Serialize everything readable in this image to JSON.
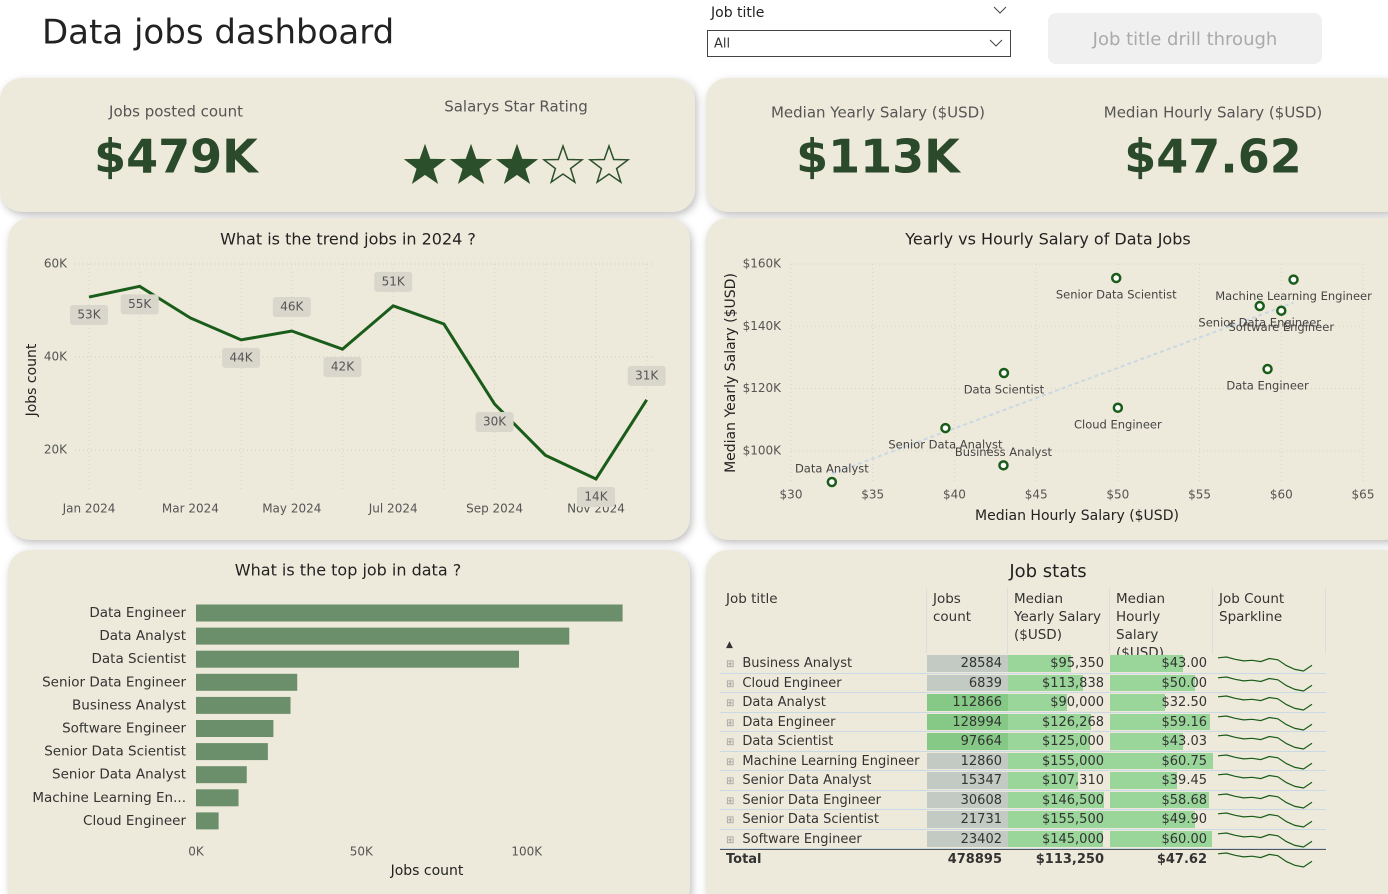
{
  "header": {
    "title": "Data jobs dashboard",
    "filter_label": "Job title",
    "filter_value": "All",
    "button": "Job title drill through"
  },
  "kpis": [
    {
      "label": "Jobs posted count",
      "value": "$479K"
    },
    {
      "label": "Salarys Star Rating",
      "rating": 3,
      "rating_max": 5
    },
    {
      "label": "Median Yearly Salary ($USD)",
      "value": "$113K"
    },
    {
      "label": "Median Hourly Salary ($USD)",
      "value": "$47.62"
    }
  ],
  "chart_data": [
    {
      "type": "line",
      "title": "What is the trend jobs in 2024 ?",
      "y_label": "Jobs count",
      "categories": [
        "Jan 2024",
        null,
        "Mar 2024",
        null,
        "May 2024",
        null,
        "Jul 2024",
        null,
        "Sep 2024",
        null,
        "Nov 2024",
        null
      ],
      "values": [
        52900,
        55200,
        48400,
        43700,
        45600,
        41700,
        51000,
        47100,
        29900,
        18900,
        13800,
        30800
      ],
      "value_labels": [
        "53K",
        "55K",
        null,
        "44K",
        "46K",
        "42K",
        "51K",
        null,
        "30K",
        null,
        "14K",
        "31K"
      ],
      "color": "#1a5c1a",
      "ylim": [
        11000,
        60000
      ],
      "yticks": [
        {
          "value": 20000,
          "label": "20K"
        },
        {
          "value": 40000,
          "label": "40K"
        },
        {
          "value": 60000,
          "label": "60K"
        }
      ],
      "grid": true
    },
    {
      "type": "scatter",
      "title": "Yearly vs Hourly Salary of Data Jobs",
      "x_label": "Median Hourly Salary ($USD)",
      "y_label": "Median Yearly Salary ($USD)",
      "point_labels": [
        "Business Analyst",
        "Cloud Engineer",
        "Data Analyst",
        "Data Engineer",
        "Data Scientist",
        "Machine Learning Engineer",
        "Senior Data Analyst",
        "Senior Data Engineer",
        "Senior Data Scientist",
        "Software Engineer"
      ],
      "x": [
        43.0,
        50.0,
        32.5,
        59.16,
        43.03,
        60.75,
        39.45,
        58.68,
        49.9,
        60.0
      ],
      "values": [
        95350,
        113838,
        90000,
        126268,
        125000,
        155000,
        107310,
        146500,
        155500,
        145000
      ],
      "color": "#1a5c1a",
      "trendline_color": "#c9d8e4",
      "xlim": [
        30,
        65
      ],
      "xticks": [
        {
          "value": 30,
          "label": "$30"
        },
        {
          "value": 35,
          "label": "$35"
        },
        {
          "value": 40,
          "label": "$40"
        },
        {
          "value": 45,
          "label": "$45"
        },
        {
          "value": 50,
          "label": "$50"
        },
        {
          "value": 55,
          "label": "$55"
        },
        {
          "value": 60,
          "label": "$60"
        },
        {
          "value": 65,
          "label": "$65"
        }
      ],
      "ylim": [
        90000,
        160000
      ],
      "yticks": [
        {
          "value": 100000,
          "label": "$100K"
        },
        {
          "value": 120000,
          "label": "$120K"
        },
        {
          "value": 140000,
          "label": "$140K"
        },
        {
          "value": 160000,
          "label": "$160K"
        }
      ],
      "grid": true,
      "trendline": true
    },
    {
      "type": "bar",
      "orientation": "horizontal",
      "title": "What is the top job in data ?",
      "x_label": "Jobs count",
      "categories": [
        "Data Engineer",
        "Data Analyst",
        "Data Scientist",
        "Senior Data Engineer",
        "Business Analyst",
        "Software Engineer",
        "Senior Data Scientist",
        "Senior Data Analyst",
        "Machine Learning En...",
        "Cloud Engineer"
      ],
      "values": [
        128994,
        112866,
        97664,
        30608,
        28584,
        23402,
        21731,
        15347,
        12860,
        6839
      ],
      "color": "#6b8f6b",
      "xlim": [
        0,
        140000
      ],
      "xticks": [
        {
          "value": 0,
          "label": "0K"
        },
        {
          "value": 50000,
          "label": "50K"
        },
        {
          "value": 100000,
          "label": "100K"
        }
      ]
    }
  ],
  "table": {
    "title": "Job stats",
    "columns": [
      "Job title",
      "Jobs count",
      "Median Yearly Salary ($USD)",
      "Median Hourly Salary ($USD)",
      "Job Count Sparkline"
    ],
    "colors": {
      "high": "#86c886",
      "low": "#c3cac3",
      "bar": "#9ad69a",
      "sparkline": "#1a5c1a"
    },
    "rows": [
      {
        "job_title": "Business Analyst",
        "jobs_count": 28584,
        "median_yearly": {
          "value": 95350,
          "label": "$95,350"
        },
        "median_hourly": {
          "value": 43.0,
          "label": "$43.00"
        },
        "sparkline": [
          3144,
          3287,
          2887,
          2601,
          2715,
          2487,
          3030,
          2801,
          1772,
          1115,
          829,
          1829
        ]
      },
      {
        "job_title": "Cloud Engineer",
        "jobs_count": 6839,
        "median_yearly": {
          "value": 113838,
          "label": "$113,838"
        },
        "median_hourly": {
          "value": 50.0,
          "label": "$50.00"
        },
        "sparkline": [
          752,
          786,
          691,
          622,
          650,
          595,
          725,
          670,
          424,
          267,
          198,
          438
        ]
      },
      {
        "job_title": "Data Analyst",
        "jobs_count": 112866,
        "median_yearly": {
          "value": 90000,
          "label": "$90,000"
        },
        "median_hourly": {
          "value": 32.5,
          "label": "$32.50"
        },
        "sparkline": [
          12415,
          12980,
          11399,
          10271,
          10722,
          9819,
          11964,
          11061,
          6998,
          4402,
          3273,
          7223
        ]
      },
      {
        "job_title": "Data Engineer",
        "jobs_count": 128994,
        "median_yearly": {
          "value": 126268,
          "label": "$126,268"
        },
        "median_hourly": {
          "value": 59.16,
          "label": "$59.16"
        },
        "sparkline": [
          14189,
          14834,
          13028,
          11738,
          12254,
          11222,
          13673,
          12641,
          7998,
          5031,
          3741,
          8256
        ]
      },
      {
        "job_title": "Data Scientist",
        "jobs_count": 97664,
        "median_yearly": {
          "value": 125000,
          "label": "$125,000"
        },
        "median_hourly": {
          "value": 43.03,
          "label": "$43.03"
        },
        "sparkline": [
          10743,
          11231,
          9864,
          8887,
          9278,
          8497,
          10352,
          9571,
          6055,
          3809,
          2832,
          6250
        ]
      },
      {
        "job_title": "Machine Learning Engineer",
        "jobs_count": 12860,
        "median_yearly": {
          "value": 155000,
          "label": "$155,000"
        },
        "median_hourly": {
          "value": 60.75,
          "label": "$60.75"
        },
        "sparkline": [
          1415,
          1479,
          1299,
          1170,
          1222,
          1119,
          1363,
          1260,
          797,
          502,
          373,
          823
        ]
      },
      {
        "job_title": "Senior Data Analyst",
        "jobs_count": 15347,
        "median_yearly": {
          "value": 107310,
          "label": "$107,310"
        },
        "median_hourly": {
          "value": 39.45,
          "label": "$39.45"
        },
        "sparkline": [
          1688,
          1765,
          1550,
          1397,
          1458,
          1335,
          1627,
          1504,
          952,
          599,
          445,
          982
        ]
      },
      {
        "job_title": "Senior Data Engineer",
        "jobs_count": 30608,
        "median_yearly": {
          "value": 146500,
          "label": "$146,500"
        },
        "median_hourly": {
          "value": 58.68,
          "label": "$58.68"
        },
        "sparkline": [
          3367,
          3520,
          3091,
          2785,
          2908,
          2663,
          3244,
          3000,
          1898,
          1194,
          888,
          1959
        ]
      },
      {
        "job_title": "Senior Data Scientist",
        "jobs_count": 21731,
        "median_yearly": {
          "value": 155500,
          "label": "$155,500"
        },
        "median_hourly": {
          "value": 49.9,
          "label": "$49.90"
        },
        "sparkline": [
          2390,
          2499,
          2195,
          1978,
          2064,
          1891,
          2303,
          2130,
          1347,
          848,
          630,
          1391
        ]
      },
      {
        "job_title": "Software Engineer",
        "jobs_count": 23402,
        "median_yearly": {
          "value": 145000,
          "label": "$145,000"
        },
        "median_hourly": {
          "value": 60.0,
          "label": "$60.00"
        },
        "sparkline": [
          2574,
          2691,
          2364,
          2130,
          2223,
          2036,
          2481,
          2293,
          1451,
          913,
          679,
          1498
        ]
      }
    ],
    "total": {
      "label": "Total",
      "jobs_count": 478895,
      "median_yearly": {
        "value": 113250,
        "label": "$113,250"
      },
      "median_hourly": {
        "value": 47.62,
        "label": "$47.62"
      }
    }
  }
}
